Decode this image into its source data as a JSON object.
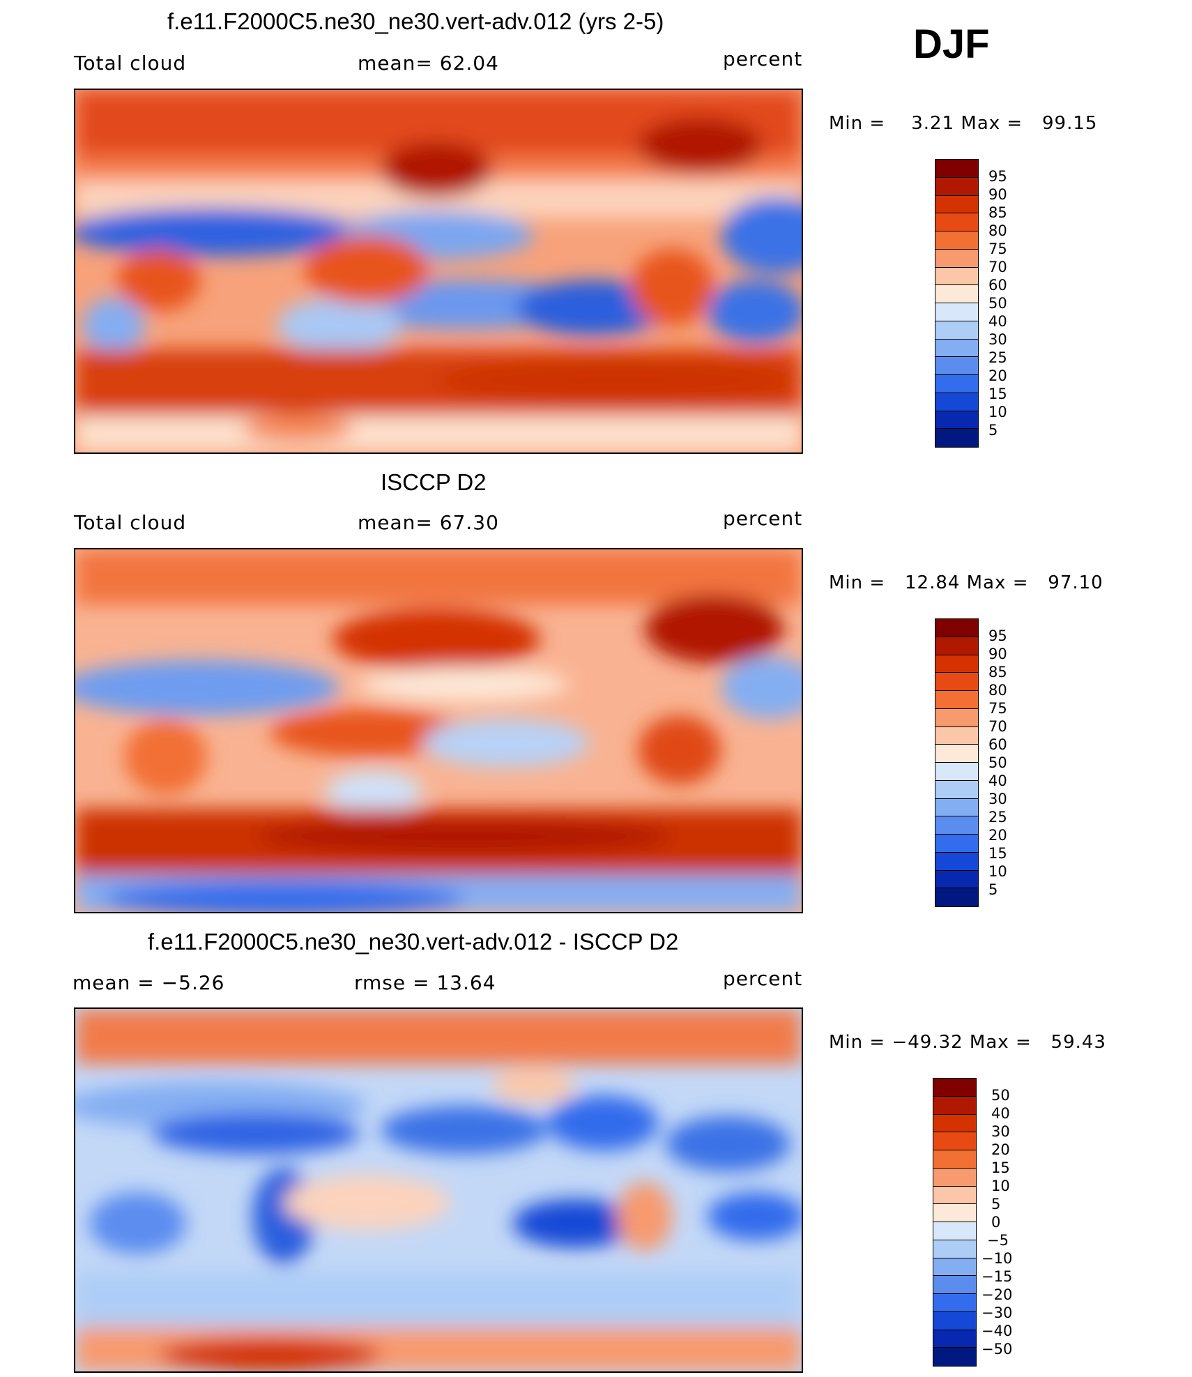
{
  "season": "DJF",
  "panels": [
    {
      "id": "model",
      "title": "f.e11.F2000C5.ne30_ne30.vert-adv.012 (yrs 2-5)",
      "left_label": "Total cloud",
      "center_label": "mean=   62.04",
      "right_label": "percent",
      "minmax": "Min =    3.21 Max =   99.15",
      "legend_labels": [
        "95",
        "90",
        "85",
        "80",
        "75",
        "70",
        "60",
        "50",
        "40",
        "30",
        "25",
        "20",
        "15",
        "10",
        "5"
      ],
      "colors": [
        "#800000",
        "#b01900",
        "#d43200",
        "#e84a14",
        "#f27034",
        "#f79a6e",
        "#fcc7a8",
        "#fde9d8",
        "#d8e7f9",
        "#aecdf6",
        "#84aef2",
        "#5b8def",
        "#336cec",
        "#1548d6",
        "#0828b0",
        "#001880"
      ]
    },
    {
      "id": "obs",
      "title": "ISCCP D2",
      "left_label": "Total cloud",
      "center_label": "mean=   67.30",
      "right_label": "percent",
      "minmax": "Min =   12.84 Max =   97.10",
      "legend_labels": [
        "95",
        "90",
        "85",
        "80",
        "75",
        "70",
        "60",
        "50",
        "40",
        "30",
        "25",
        "20",
        "15",
        "10",
        "5"
      ],
      "colors": [
        "#800000",
        "#b01900",
        "#d43200",
        "#e84a14",
        "#f27034",
        "#f79a6e",
        "#fcc7a8",
        "#fde9d8",
        "#d8e7f9",
        "#aecdf6",
        "#84aef2",
        "#5b8def",
        "#336cec",
        "#1548d6",
        "#0828b0",
        "#001880"
      ]
    },
    {
      "id": "diff",
      "title": "f.e11.F2000C5.ne30_ne30.vert-adv.012 - ISCCP D2",
      "left_label": "mean =   −5.26",
      "center_label": "rmse =   13.64",
      "right_label": "percent",
      "minmax": "Min = −49.32 Max =   59.43",
      "legend_labels": [
        "50",
        "40",
        "30",
        "20",
        "15",
        "10",
        "5",
        "0",
        "−5",
        "−10",
        "−15",
        "−20",
        "−30",
        "−40",
        "−50"
      ],
      "colors": [
        "#800000",
        "#b01900",
        "#d43200",
        "#e84a14",
        "#f27034",
        "#f79a6e",
        "#fcc7a8",
        "#fde9d8",
        "#d8e7f9",
        "#aecdf6",
        "#84aef2",
        "#5b8def",
        "#336cec",
        "#1548d6",
        "#0828b0",
        "#001880"
      ]
    }
  ]
}
